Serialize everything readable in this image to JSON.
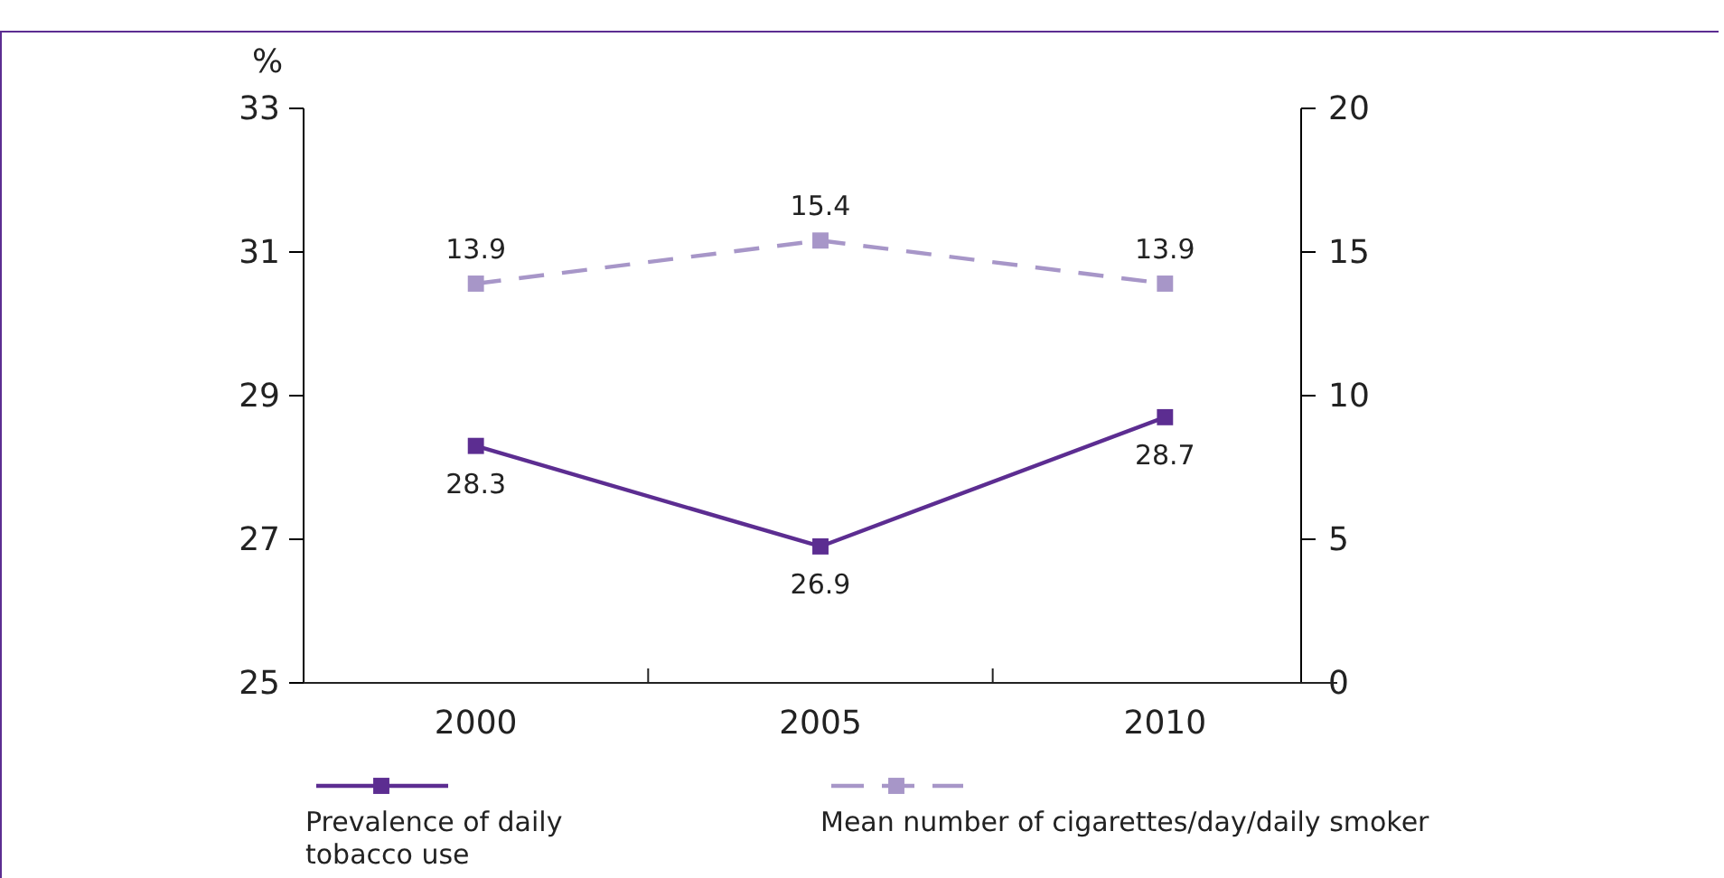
{
  "chart_data": {
    "type": "line",
    "ylabel": "%",
    "categories": [
      "2000",
      "2005",
      "2010"
    ],
    "series": [
      {
        "name": "Prevalence of daily tobacco use",
        "color": "#5c2d91",
        "values": [
          28.3,
          26.9,
          28.7
        ],
        "line_style": "solid"
      },
      {
        "name": "Mean number of cigarettes/day/daily smoker",
        "color": "#a796c8",
        "values": [
          13.9,
          15.4,
          13.9
        ],
        "axis": "y2",
        "line_style": "dashed"
      }
    ],
    "ylim": [
      25,
      33
    ],
    "yticks": [
      25,
      27,
      29,
      31,
      33
    ],
    "y2lim": [
      0,
      20
    ],
    "y2ticks": [
      0,
      5,
      10,
      15,
      20
    ],
    "marker": "square",
    "data_labels": true,
    "legend": "bottom",
    "grid": false
  }
}
